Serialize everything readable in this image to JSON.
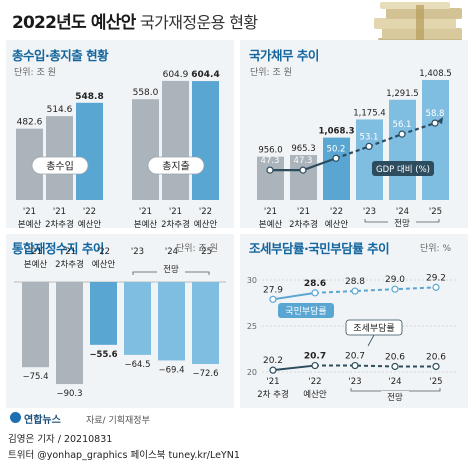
{
  "header": {
    "title": "2022년도 예산안",
    "subtitle": "국가재정운용 현황"
  },
  "source": "자료/ 기획재정부",
  "logo_text": "연합뉴스",
  "credit": "김영은 기자 / 20210831",
  "social": "트위터 @yonhap_graphics  페이스북 tuney.kr/LeYN1",
  "colors": {
    "accent": "#12659e",
    "gray_bar": "#aab4ba",
    "blue_bar": "#5aa6d3",
    "dark_line": "#2d4c5e"
  },
  "chart_data": [
    {
      "type": "bar",
      "title": "총수입·총지출 현황",
      "unit": "단위: 조 원",
      "categories": [
        "'21\n본예산",
        "'21\n2차추경",
        "'22\n예산안"
      ],
      "series": [
        {
          "name": "총수입",
          "values": [
            482.6,
            514.6,
            548.8
          ]
        },
        {
          "name": "총지출",
          "values": [
            558.0,
            604.9,
            604.4
          ]
        }
      ]
    },
    {
      "type": "bar",
      "title": "국가채무 추이",
      "unit": "단위: 조 원",
      "categories": [
        "'21\n본예산",
        "'21\n2차추경",
        "'22\n예산안",
        "'23",
        "'24",
        "'25"
      ],
      "bar_values": [
        956.0,
        965.3,
        1068.3,
        1175.4,
        1291.5,
        1408.5
      ],
      "line_series": {
        "name": "GDP 대비 (%)",
        "values": [
          47.3,
          47.3,
          50.2,
          53.1,
          56.1,
          58.8
        ]
      },
      "forecast_label": "전망"
    },
    {
      "type": "bar",
      "title": "통합재정수지 추이",
      "unit": "단위: 조 원",
      "categories": [
        "'21\n본예산",
        "'21\n2차추경",
        "'22\n예산안",
        "'23",
        "'24",
        "'25"
      ],
      "values": [
        -75.4,
        -90.3,
        -55.6,
        -64.5,
        -69.4,
        -72.6
      ],
      "forecast_label": "전망"
    },
    {
      "type": "line",
      "title": "조세부담률·국민부담률 추이",
      "unit": "단위: %",
      "categories": [
        "'21\n2차 추경",
        "'22\n예산안",
        "'23",
        "'24",
        "'25"
      ],
      "series": [
        {
          "name": "국민부담률",
          "values": [
            27.9,
            28.6,
            28.8,
            29.0,
            29.2
          ]
        },
        {
          "name": "조세부담률",
          "values": [
            20.2,
            20.7,
            20.7,
            20.6,
            20.6
          ]
        }
      ],
      "y_ticks": [
        30,
        25,
        20
      ],
      "forecast_label": "전망"
    }
  ]
}
